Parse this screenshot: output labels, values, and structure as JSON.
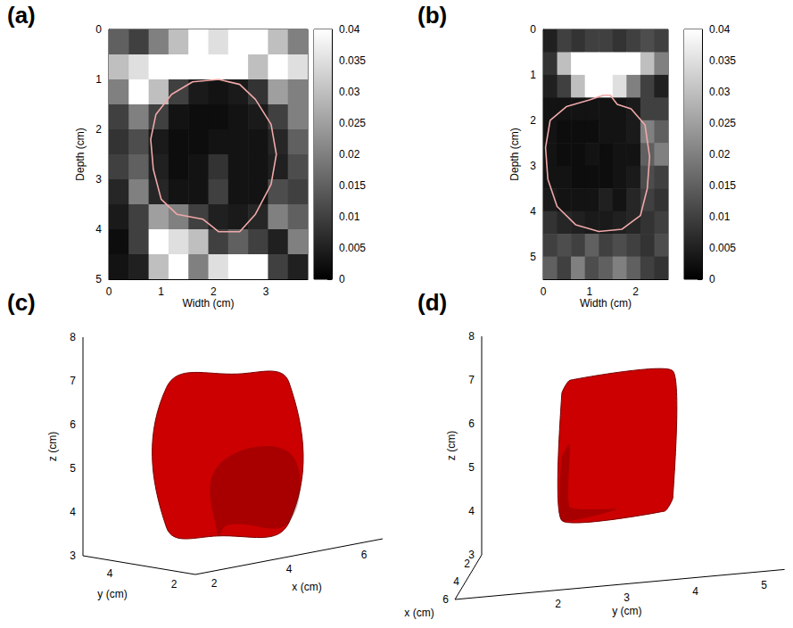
{
  "chart_data": [
    {
      "label": "(a)",
      "type": "heatmap",
      "xlabel": "Width (cm)",
      "ylabel": "Depth (cm)",
      "xlim": [
        0,
        3.8
      ],
      "ylim": [
        0,
        5
      ],
      "xticks": [
        0,
        1,
        2,
        3
      ],
      "yticks": [
        0,
        1,
        2,
        3,
        4,
        5
      ],
      "cells": {
        "x": [
          0.19,
          0.57,
          0.95,
          1.33,
          1.71,
          2.09,
          2.47,
          2.85,
          3.23,
          3.61
        ],
        "y": [
          0.25,
          0.75,
          1.25,
          1.75,
          2.25,
          2.75,
          3.25,
          3.75,
          4.25,
          4.75
        ],
        "values": [
          [
            0.015,
            0.01,
            0.02,
            0.03,
            0.04,
            0.035,
            0.04,
            0.04,
            0.03,
            0.02
          ],
          [
            0.03,
            0.035,
            0.04,
            0.04,
            0.04,
            0.04,
            0.04,
            0.03,
            0.04,
            0.035
          ],
          [
            0.02,
            0.04,
            0.03,
            0.01,
            0.004,
            0.003,
            0.004,
            0.008,
            0.025,
            0.02
          ],
          [
            0.01,
            0.02,
            0.01,
            0.003,
            0.002,
            0.002,
            0.003,
            0.004,
            0.01,
            0.02
          ],
          [
            0.008,
            0.012,
            0.004,
            0.002,
            0.002,
            0.003,
            0.003,
            0.003,
            0.006,
            0.015
          ],
          [
            0.01,
            0.015,
            0.005,
            0.002,
            0.003,
            0.008,
            0.003,
            0.003,
            0.005,
            0.012
          ],
          [
            0.006,
            0.02,
            0.006,
            0.003,
            0.003,
            0.01,
            0.003,
            0.003,
            0.012,
            0.01
          ],
          [
            0.004,
            0.01,
            0.025,
            0.02,
            0.01,
            0.005,
            0.004,
            0.006,
            0.02,
            0.015
          ],
          [
            0.002,
            0.01,
            0.04,
            0.035,
            0.03,
            0.01,
            0.015,
            0.01,
            0.005,
            0.02
          ],
          [
            0.003,
            0.005,
            0.03,
            0.04,
            0.02,
            0.035,
            0.04,
            0.04,
            0.01,
            0.005
          ]
        ]
      },
      "colorbar": {
        "range": [
          0,
          0.04
        ],
        "ticks": [
          0,
          0.005,
          0.01,
          0.015,
          0.02,
          0.025,
          0.03,
          0.035,
          0.04
        ]
      },
      "contour": {
        "color": "#f0a8a8",
        "x": [
          2.1,
          1.6,
          1.2,
          0.9,
          0.8,
          0.85,
          1.0,
          1.3,
          1.8,
          2.1,
          2.5,
          2.8,
          3.1,
          3.2,
          3.1,
          2.8,
          2.5,
          2.1
        ],
        "y": [
          1.0,
          1.05,
          1.3,
          1.7,
          2.2,
          2.8,
          3.4,
          3.7,
          3.8,
          4.05,
          4.05,
          3.7,
          3.1,
          2.5,
          1.9,
          1.4,
          1.1,
          1.0
        ]
      }
    },
    {
      "label": "(b)",
      "type": "heatmap",
      "xlabel": "Width (cm)",
      "ylabel": "Depth (cm)",
      "xlim": [
        0,
        2.7
      ],
      "ylim": [
        0,
        5.5
      ],
      "xticks": [
        0,
        1,
        2
      ],
      "yticks": [
        0,
        1,
        2,
        3,
        4,
        5
      ],
      "cells": {
        "x": [
          0.15,
          0.45,
          0.75,
          1.05,
          1.35,
          1.65,
          1.95,
          2.25,
          2.55
        ],
        "y": [
          0.25,
          0.75,
          1.25,
          1.75,
          2.25,
          2.75,
          3.25,
          3.75,
          4.25,
          4.75,
          5.25
        ],
        "values": [
          [
            0.005,
            0.01,
            0.008,
            0.01,
            0.01,
            0.008,
            0.01,
            0.012,
            0.01
          ],
          [
            0.008,
            0.03,
            0.04,
            0.04,
            0.04,
            0.04,
            0.04,
            0.03,
            0.02
          ],
          [
            0.005,
            0.01,
            0.03,
            0.04,
            0.04,
            0.035,
            0.02,
            0.01,
            0.005
          ],
          [
            0.003,
            0.003,
            0.003,
            0.003,
            0.003,
            0.003,
            0.004,
            0.01,
            0.01
          ],
          [
            0.003,
            0.002,
            0.002,
            0.002,
            0.003,
            0.003,
            0.004,
            0.02,
            0.015
          ],
          [
            0.003,
            0.002,
            0.002,
            0.003,
            0.002,
            0.003,
            0.003,
            0.015,
            0.02
          ],
          [
            0.003,
            0.003,
            0.002,
            0.002,
            0.002,
            0.003,
            0.004,
            0.012,
            0.01
          ],
          [
            0.004,
            0.003,
            0.003,
            0.003,
            0.005,
            0.003,
            0.006,
            0.01,
            0.008
          ],
          [
            0.008,
            0.006,
            0.005,
            0.004,
            0.004,
            0.005,
            0.006,
            0.008,
            0.01
          ],
          [
            0.01,
            0.012,
            0.01,
            0.015,
            0.01,
            0.012,
            0.01,
            0.008,
            0.012
          ],
          [
            0.015,
            0.01,
            0.02,
            0.012,
            0.015,
            0.02,
            0.015,
            0.01,
            0.008
          ]
        ]
      },
      "colorbar": {
        "range": [
          0,
          0.04
        ],
        "ticks": [
          0,
          0.005,
          0.01,
          0.015,
          0.02,
          0.025,
          0.03,
          0.035,
          0.04
        ]
      },
      "contour": {
        "color": "#f0a8a8",
        "x": [
          1.3,
          1.0,
          0.5,
          0.15,
          0.05,
          0.1,
          0.3,
          0.7,
          1.2,
          1.7,
          2.1,
          2.25,
          2.3,
          2.2,
          1.9,
          1.6,
          1.45,
          1.3
        ],
        "y": [
          1.45,
          1.55,
          1.7,
          2.0,
          2.6,
          3.3,
          3.9,
          4.3,
          4.45,
          4.4,
          4.1,
          3.5,
          2.8,
          2.1,
          1.75,
          1.65,
          1.45,
          1.45
        ]
      }
    },
    {
      "label": "(c)",
      "type": "volume",
      "xlabel": "x (cm)",
      "ylabel": "y (cm)",
      "zlabel": "z (cm)",
      "xlim": [
        1.5,
        6.5
      ],
      "ylim": [
        1.5,
        5
      ],
      "zlim": [
        3,
        8
      ],
      "xticks": [
        2,
        4,
        6
      ],
      "yticks": [
        2,
        4
      ],
      "zticks": [
        3,
        4,
        5,
        6,
        7,
        8
      ],
      "color": "#cc0000",
      "extent": {
        "x": [
          2.7,
          4.6
        ],
        "y": [
          2.2,
          3.8
        ],
        "z": [
          3.6,
          6.8
        ]
      }
    },
    {
      "label": "(d)",
      "type": "volume",
      "xlabel": "x (cm)",
      "ylabel": "y (cm)",
      "zlabel": "z (cm)",
      "xlim": [
        1.5,
        6.5
      ],
      "ylim": [
        0.5,
        5.3
      ],
      "zlim": [
        3,
        8
      ],
      "xticks": [
        2,
        4,
        6
      ],
      "yticks": [
        2,
        3,
        4,
        5
      ],
      "zticks": [
        3,
        4,
        5,
        6,
        7,
        8
      ],
      "color": "#cc0000",
      "extent": {
        "x": [
          3,
          4.5
        ],
        "y": [
          1.9,
          3.4
        ],
        "z": [
          4.2,
          7.1
        ]
      }
    }
  ]
}
